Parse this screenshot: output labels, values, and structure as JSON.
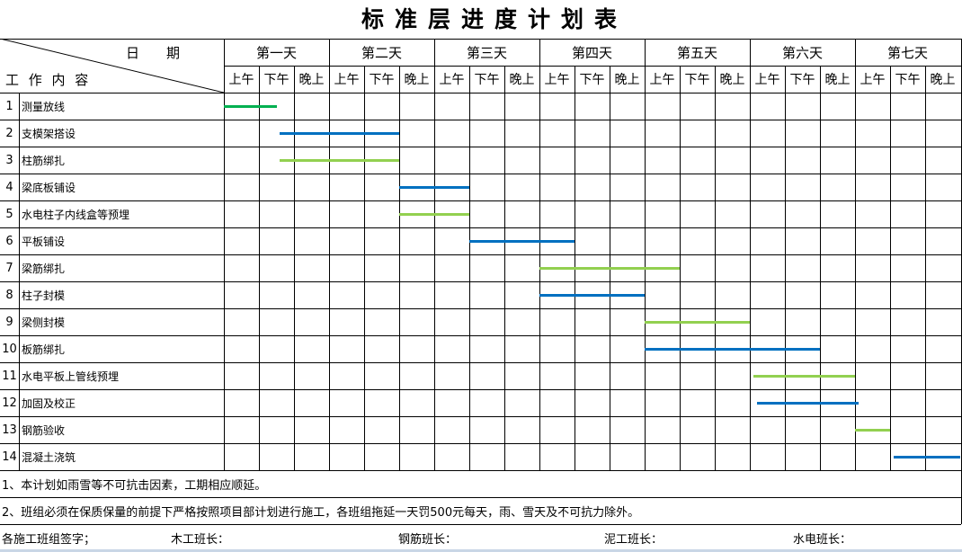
{
  "title": "标准层进度计划表",
  "header": {
    "date_label": "日　　期",
    "content_label": "工 作 内 容",
    "days": [
      "第一天",
      "第二天",
      "第三天",
      "第四天",
      "第五天",
      "第六天",
      "第七天"
    ],
    "periods": [
      "上午",
      "下午",
      "晚上"
    ]
  },
  "colors": {
    "green": "#92d050",
    "dark_green": "#00b050",
    "blue": "#0070c0"
  },
  "tasks": [
    {
      "no": "1",
      "name": "测量放线",
      "start": 0,
      "end": 1.5,
      "color": "dark_green"
    },
    {
      "no": "2",
      "name": "支模架搭设",
      "start": 1.6,
      "end": 5,
      "color": "blue"
    },
    {
      "no": "3",
      "name": "柱筋绑扎",
      "start": 1.6,
      "end": 5,
      "color": "green"
    },
    {
      "no": "4",
      "name": "梁底板铺设",
      "start": 5,
      "end": 7,
      "color": "blue"
    },
    {
      "no": "5",
      "name": "水电柱子内线盒等预埋",
      "start": 5,
      "end": 7,
      "color": "green"
    },
    {
      "no": "6",
      "name": "平板铺设",
      "start": 7,
      "end": 10,
      "color": "blue"
    },
    {
      "no": "7",
      "name": "梁筋绑扎",
      "start": 9,
      "end": 13,
      "color": "green"
    },
    {
      "no": "8",
      "name": "柱子封模",
      "start": 9,
      "end": 12,
      "color": "blue"
    },
    {
      "no": "9",
      "name": "梁侧封模",
      "start": 12,
      "end": 15,
      "color": "green"
    },
    {
      "no": "10",
      "name": "板筋绑扎",
      "start": 12,
      "end": 17,
      "color": "blue"
    },
    {
      "no": "11",
      "name": "水电平板上管线预埋",
      "start": 15.1,
      "end": 18,
      "color": "green"
    },
    {
      "no": "12",
      "name": "加固及校正",
      "start": 15.2,
      "end": 18.1,
      "color": "blue"
    },
    {
      "no": "13",
      "name": "钢筋验收",
      "start": 18,
      "end": 19,
      "color": "green"
    },
    {
      "no": "14",
      "name": "混凝土浇筑",
      "start": 19.1,
      "end": 21,
      "color": "blue"
    }
  ],
  "notes": [
    "1、本计划如雨雪等不可抗击因素，工期相应顺延。",
    "2、班组必须在保质保量的前提下严格按照项目部计划进行施工，各班组拖延一天罚500元每天，雨、雪天及不可抗力除外。"
  ],
  "signatures": {
    "label": "各施工班组签字；",
    "items": [
      "木工班长：",
      "钢筋班长：",
      "泥工班长：",
      "水电班长："
    ]
  }
}
